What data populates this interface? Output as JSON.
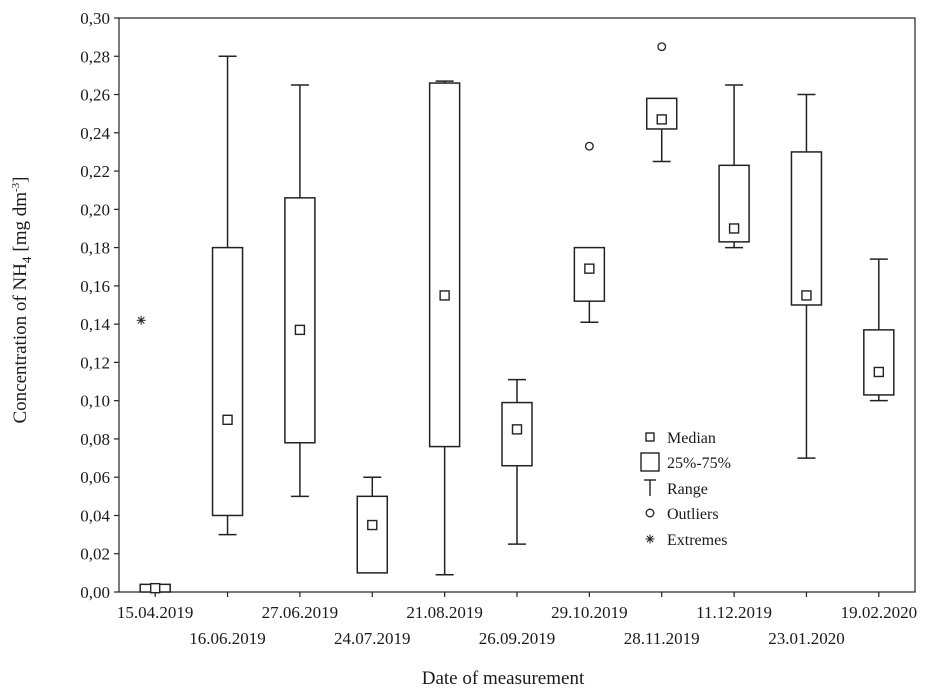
{
  "chart_data": {
    "type": "box",
    "xlabel": "Date of measurement",
    "ylabel": "Concentration of NH",
    "ylabel_sub": "4",
    "ylabel_unit": "[mg dm",
    "ylabel_sup": "-3",
    "ylabel_end": "]",
    "ylim": [
      0,
      0.3
    ],
    "yticks": [
      "0,00",
      "0,02",
      "0,04",
      "0,06",
      "0,08",
      "0,10",
      "0,12",
      "0,14",
      "0,16",
      "0,18",
      "0,20",
      "0,22",
      "0,24",
      "0,26",
      "0,28",
      "0,30"
    ],
    "grid": false,
    "legend_position": "right-middle",
    "categories": [
      "15.04.2019",
      "16.06.2019",
      "27.06.2019",
      "24.07.2019",
      "21.08.2019",
      "26.09.2019",
      "29.10.2019",
      "28.11.2019",
      "11.12.2019",
      "23.01.2020",
      "19.02.2020"
    ],
    "label_row": [
      "top",
      "bottom",
      "top",
      "bottom",
      "top",
      "bottom",
      "top",
      "bottom",
      "top",
      "bottom",
      "top"
    ],
    "boxes": [
      {
        "min": 0.0,
        "q1": 0.0,
        "median": 0.002,
        "q3": 0.004,
        "max": 0.004,
        "outliers": [],
        "extremes": [
          0.142
        ]
      },
      {
        "min": 0.03,
        "q1": 0.04,
        "median": 0.09,
        "q3": 0.18,
        "max": 0.28,
        "outliers": [],
        "extremes": []
      },
      {
        "min": 0.05,
        "q1": 0.078,
        "median": 0.137,
        "q3": 0.206,
        "max": 0.265,
        "outliers": [],
        "extremes": []
      },
      {
        "min": 0.01,
        "q1": 0.01,
        "median": 0.035,
        "q3": 0.05,
        "max": 0.06,
        "outliers": [],
        "extremes": []
      },
      {
        "min": 0.009,
        "q1": 0.076,
        "median": 0.155,
        "q3": 0.266,
        "max": 0.267,
        "outliers": [],
        "extremes": []
      },
      {
        "min": 0.025,
        "q1": 0.066,
        "median": 0.085,
        "q3": 0.099,
        "max": 0.111,
        "outliers": [],
        "extremes": []
      },
      {
        "min": 0.141,
        "q1": 0.152,
        "median": 0.169,
        "q3": 0.18,
        "max": 0.18,
        "outliers": [
          0.233
        ],
        "extremes": []
      },
      {
        "min": 0.225,
        "q1": 0.242,
        "median": 0.247,
        "q3": 0.258,
        "max": 0.258,
        "outliers": [
          0.285
        ],
        "extremes": []
      },
      {
        "min": 0.18,
        "q1": 0.183,
        "median": 0.19,
        "q3": 0.223,
        "max": 0.265,
        "outliers": [],
        "extremes": []
      },
      {
        "min": 0.07,
        "q1": 0.15,
        "median": 0.155,
        "q3": 0.23,
        "max": 0.26,
        "outliers": [],
        "extremes": []
      },
      {
        "min": 0.1,
        "q1": 0.103,
        "median": 0.115,
        "q3": 0.137,
        "max": 0.174,
        "outliers": [],
        "extremes": []
      }
    ],
    "legend": [
      {
        "symbol": "median",
        "label": "Median"
      },
      {
        "symbol": "box",
        "label": "25%-75%"
      },
      {
        "symbol": "range",
        "label": "Range"
      },
      {
        "symbol": "outlier",
        "label": "Outliers"
      },
      {
        "symbol": "extreme",
        "label": "Extremes"
      }
    ]
  }
}
